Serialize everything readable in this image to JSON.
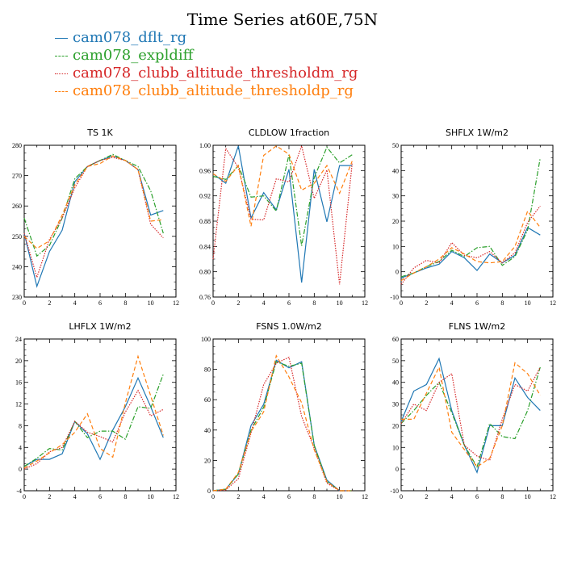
{
  "title": "Time Series at60E,75N",
  "legend": [
    {
      "label": "cam078_dflt_rg",
      "color": "#1f77b4",
      "dash": "solid"
    },
    {
      "label": "cam078_expldiff",
      "color": "#2ca02c",
      "dash": "dashdot"
    },
    {
      "label": "cam078_clubb_altitude_thresholdm_rg",
      "color": "#d62728",
      "dash": "dotted"
    },
    {
      "label": "cam078_clubb_altitude_thresholdp_rg",
      "color": "#ff7f0e",
      "dash": "dashed"
    }
  ],
  "chart_data": [
    {
      "type": "line",
      "title": "TS 1K",
      "x": [
        0,
        1,
        2,
        3,
        4,
        5,
        6,
        7,
        8,
        9,
        10,
        11
      ],
      "xlim": [
        0,
        12
      ],
      "xticks": [
        0,
        2,
        4,
        6,
        8,
        10,
        12
      ],
      "ylim": [
        230,
        280
      ],
      "yticks": [
        "230",
        "240",
        "250",
        "260",
        "270",
        "280"
      ],
      "series": [
        {
          "name": "cam078_dflt_rg",
          "values": [
            251,
            233.5,
            245,
            252,
            268,
            273,
            275,
            276.5,
            275,
            272,
            257,
            258.5
          ]
        },
        {
          "name": "cam078_expldiff",
          "values": [
            256,
            243.5,
            247,
            256,
            269,
            273,
            275,
            277,
            275,
            273,
            265,
            251
          ]
        },
        {
          "name": "cam078_clubb_altitude_thresholdm_rg",
          "values": [
            251,
            236.5,
            249,
            256,
            266,
            273,
            275,
            276,
            275,
            272,
            254,
            249.5
          ]
        },
        {
          "name": "cam078_clubb_altitude_thresholdp_rg",
          "values": [
            250,
            246,
            248.5,
            257,
            267,
            273,
            274,
            276.5,
            275,
            272,
            255,
            255.5
          ]
        }
      ]
    },
    {
      "type": "line",
      "title": "CLDLOW 1fraction",
      "x": [
        0,
        1,
        2,
        3,
        4,
        5,
        6,
        7,
        8,
        9,
        10,
        11
      ],
      "xlim": [
        0,
        12
      ],
      "xticks": [
        0,
        2,
        4,
        6,
        8,
        10,
        12
      ],
      "ylim": [
        0.76,
        1.0
      ],
      "yticks": [
        "0.76",
        "0.80",
        "0.84",
        "0.88",
        "0.92",
        "0.96",
        "1.00"
      ],
      "series": [
        {
          "name": "cam078_dflt_rg",
          "values": [
            0.955,
            0.94,
            0.999,
            0.885,
            0.925,
            0.898,
            0.962,
            0.783,
            0.962,
            0.879,
            0.968,
            0.968
          ]
        },
        {
          "name": "cam078_expldiff",
          "values": [
            0.951,
            0.946,
            0.968,
            0.918,
            0.92,
            0.896,
            0.985,
            0.841,
            0.949,
            0.997,
            0.972,
            0.985
          ]
        },
        {
          "name": "cam078_clubb_altitude_thresholdm_rg",
          "values": [
            0.82,
            0.995,
            0.965,
            0.883,
            0.882,
            0.947,
            0.942,
            0.999,
            0.916,
            0.961,
            0.78,
            0.971
          ]
        },
        {
          "name": "cam078_clubb_altitude_thresholdp_rg",
          "values": [
            0.955,
            0.943,
            0.968,
            0.872,
            0.984,
            0.999,
            0.986,
            0.929,
            0.94,
            0.968,
            0.924,
            0.975
          ]
        }
      ]
    },
    {
      "type": "line",
      "title": "SHFLX 1W/m2",
      "x": [
        0,
        1,
        2,
        3,
        4,
        5,
        6,
        7,
        8,
        9,
        10,
        11
      ],
      "xlim": [
        0,
        12
      ],
      "xticks": [
        0,
        2,
        4,
        6,
        8,
        10,
        12
      ],
      "ylim": [
        -10,
        50
      ],
      "yticks": [
        "-10",
        "0",
        "10",
        "20",
        "30",
        "40",
        "50"
      ],
      "series": [
        {
          "name": "cam078_dflt_rg",
          "values": [
            -2.5,
            -0.5,
            1.5,
            3,
            8,
            5.5,
            0.5,
            7,
            3.5,
            6.5,
            17.5,
            14.5
          ]
        },
        {
          "name": "cam078_expldiff",
          "values": [
            -2,
            -0.5,
            2,
            4,
            8.5,
            6,
            9.5,
            10,
            2.5,
            6,
            16.5,
            45
          ]
        },
        {
          "name": "cam078_clubb_altitude_thresholdm_rg",
          "values": [
            -5,
            1.5,
            4.5,
            3.5,
            11.5,
            6.5,
            5.5,
            8,
            3.5,
            7.5,
            19.5,
            26
          ]
        },
        {
          "name": "cam078_clubb_altitude_thresholdp_rg",
          "values": [
            -3.5,
            -0.5,
            2,
            5,
            9.5,
            7,
            4,
            3.5,
            4,
            10,
            24,
            17.5
          ]
        }
      ]
    },
    {
      "type": "line",
      "title": "LHFLX 1W/m2",
      "x": [
        0,
        1,
        2,
        3,
        4,
        5,
        6,
        7,
        8,
        9,
        10,
        11
      ],
      "xlim": [
        0,
        12
      ],
      "xticks": [
        0,
        2,
        4,
        6,
        8,
        10,
        12
      ],
      "ylim": [
        -4,
        24
      ],
      "yticks": [
        "-4",
        "0",
        "4",
        "8",
        "12",
        "16",
        "20",
        "24"
      ],
      "series": [
        {
          "name": "cam078_dflt_rg",
          "values": [
            0.5,
            1.8,
            1.8,
            2.8,
            8.8,
            6.5,
            1.8,
            7.2,
            11.5,
            16.8,
            11.5,
            5.8
          ]
        },
        {
          "name": "cam078_expldiff",
          "values": [
            0.5,
            2,
            3.8,
            3.5,
            8.8,
            5.8,
            7,
            7,
            5.5,
            11.5,
            11.2,
            17.5
          ]
        },
        {
          "name": "cam078_clubb_altitude_thresholdm_rg",
          "values": [
            0,
            1,
            3.2,
            4,
            8.8,
            6.8,
            6,
            5,
            10.5,
            14.5,
            9.8,
            11
          ]
        },
        {
          "name": "cam078_clubb_altitude_thresholdp_rg",
          "values": [
            0.2,
            1.5,
            3,
            4.5,
            6.8,
            10.2,
            3.8,
            2.2,
            12.2,
            20.8,
            13.5,
            6.2
          ]
        }
      ]
    },
    {
      "type": "line",
      "title": "FSNS 1.0W/m2",
      "x": [
        0,
        1,
        2,
        3,
        4,
        5,
        6,
        7,
        8,
        9,
        10,
        11
      ],
      "xlim": [
        0,
        12
      ],
      "xticks": [
        0,
        2,
        4,
        6,
        8,
        10,
        12
      ],
      "ylim": [
        0,
        100
      ],
      "yticks": [
        "0",
        "20",
        "40",
        "60",
        "80",
        "100"
      ],
      "series": [
        {
          "name": "cam078_dflt_rg",
          "values": [
            0,
            1,
            11,
            43,
            57,
            86,
            81,
            85,
            30,
            7,
            0,
            0
          ]
        },
        {
          "name": "cam078_expldiff",
          "values": [
            0,
            1,
            11,
            40,
            55,
            85,
            82,
            84,
            30,
            6,
            0,
            0
          ]
        },
        {
          "name": "cam078_clubb_altitude_thresholdm_rg",
          "values": [
            0,
            0.5,
            8,
            38,
            70,
            84,
            88,
            49,
            28,
            5,
            0,
            0
          ]
        },
        {
          "name": "cam078_clubb_altitude_thresholdp_rg",
          "values": [
            0,
            1,
            12,
            39,
            52,
            89,
            75,
            58,
            27,
            6,
            0,
            0
          ]
        }
      ]
    },
    {
      "type": "line",
      "title": "FLNS 1W/m2",
      "x": [
        0,
        1,
        2,
        3,
        4,
        5,
        6,
        7,
        8,
        9,
        10,
        11
      ],
      "xlim": [
        0,
        12
      ],
      "xticks": [
        0,
        2,
        4,
        6,
        8,
        10,
        12
      ],
      "ylim": [
        -10,
        60
      ],
      "yticks": [
        "-10",
        "0",
        "10",
        "20",
        "30",
        "40",
        "50",
        "60"
      ],
      "series": [
        {
          "name": "cam078_dflt_rg",
          "values": [
            22,
            36,
            39,
            51,
            27,
            11,
            -1.5,
            20,
            20,
            42,
            33,
            27
          ]
        },
        {
          "name": "cam078_expldiff",
          "values": [
            21,
            27,
            34,
            40,
            26,
            11,
            1,
            21,
            15,
            14,
            27,
            47
          ]
        },
        {
          "name": "cam078_clubb_altitude_thresholdm_rg",
          "values": [
            21,
            30,
            27,
            40,
            44,
            11,
            6,
            4,
            23,
            39,
            36,
            47
          ]
        },
        {
          "name": "cam078_clubb_altitude_thresholdp_rg",
          "values": [
            23,
            23,
            35,
            47,
            17,
            9,
            1,
            5,
            20,
            49,
            44,
            34
          ]
        }
      ]
    }
  ]
}
